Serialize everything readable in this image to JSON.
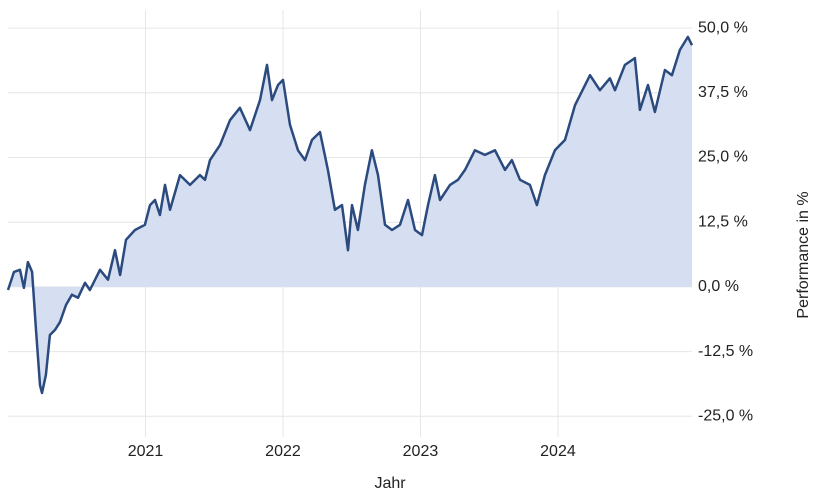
{
  "chart_data": {
    "type": "area",
    "y_label": "Performance in %",
    "x_label": "Jahr",
    "x": [
      2020.0,
      2020.044,
      2020.087,
      2020.116,
      2020.145,
      2020.175,
      2020.204,
      2020.233,
      2020.247,
      2020.276,
      2020.305,
      2020.342,
      2020.378,
      2020.422,
      2020.465,
      2020.509,
      2020.56,
      2020.596,
      2020.669,
      2020.727,
      2020.778,
      2020.815,
      2020.858,
      2020.924,
      2020.996,
      2021.033,
      2021.069,
      2021.105,
      2021.142,
      2021.178,
      2021.251,
      2021.324,
      2021.396,
      2021.433,
      2021.469,
      2021.542,
      2021.615,
      2021.687,
      2021.76,
      2021.833,
      2021.884,
      2021.92,
      2021.964,
      2022.0,
      2022.051,
      2022.109,
      2022.16,
      2022.211,
      2022.269,
      2022.327,
      2022.378,
      2022.429,
      2022.473,
      2022.502,
      2022.545,
      2022.596,
      2022.647,
      2022.691,
      2022.742,
      2022.793,
      2022.851,
      2022.909,
      2022.96,
      2023.011,
      2023.055,
      2023.105,
      2023.142,
      2023.215,
      2023.273,
      2023.324,
      2023.396,
      2023.469,
      2023.542,
      2023.615,
      2023.665,
      2023.724,
      2023.796,
      2023.847,
      2023.905,
      2023.978,
      2024.051,
      2024.124,
      2024.233,
      2024.305,
      2024.378,
      2024.415,
      2024.487,
      2024.56,
      2024.596,
      2024.655,
      2024.705,
      2024.778,
      2024.829,
      2024.887,
      2024.945,
      2024.975
    ],
    "values": [
      -0.6,
      2.9,
      3.3,
      -0.2,
      4.8,
      2.9,
      -8.3,
      -19.0,
      -20.5,
      -17.0,
      -9.3,
      -8.3,
      -6.8,
      -3.5,
      -1.5,
      -2.1,
      0.8,
      -0.6,
      3.3,
      1.4,
      7.1,
      2.3,
      9.1,
      11.0,
      12.0,
      15.8,
      16.8,
      13.9,
      19.7,
      14.9,
      21.6,
      19.7,
      21.6,
      20.7,
      24.5,
      27.4,
      32.2,
      34.6,
      30.3,
      36.1,
      42.9,
      36.1,
      39.0,
      40.0,
      31.3,
      26.4,
      24.5,
      28.4,
      29.9,
      22.6,
      14.9,
      15.8,
      7.1,
      15.8,
      11.0,
      19.7,
      26.4,
      21.6,
      12.0,
      11.0,
      12.0,
      16.8,
      11.0,
      10.0,
      15.8,
      21.6,
      16.8,
      19.7,
      20.7,
      22.6,
      26.4,
      25.5,
      26.4,
      22.6,
      24.5,
      20.7,
      19.7,
      15.8,
      21.6,
      26.4,
      28.4,
      35.1,
      40.9,
      38.0,
      40.3,
      38.0,
      42.9,
      44.2,
      34.2,
      39.0,
      33.8,
      41.9,
      40.9,
      45.8,
      48.3,
      46.7
    ],
    "color": "#2b4a7e",
    "fill_color": "#d5dff1",
    "xlim": [
      2020.0,
      2024.975
    ],
    "xticks": [
      2021,
      2022,
      2023,
      2024
    ],
    "ylim": [
      -29,
      53.5
    ],
    "yticks": [
      {
        "value": -25,
        "label": "-25,0 %"
      },
      {
        "value": -12.5,
        "label": "-12,5 %"
      },
      {
        "value": 0,
        "label": "0,0 %"
      },
      {
        "value": 12.5,
        "label": "12,5 %"
      },
      {
        "value": 25,
        "label": "25,0 %"
      },
      {
        "value": 37.5,
        "label": "37,5 %"
      },
      {
        "value": 50,
        "label": "50,0 %"
      }
    ],
    "grid": true
  }
}
